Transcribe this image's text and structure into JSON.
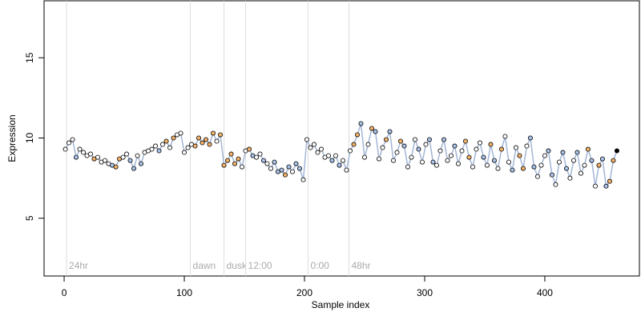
{
  "chart_data": {
    "type": "scatter",
    "xlabel": "Sample index",
    "ylabel": "Expression",
    "xlim": [
      -16.7,
      478.7
    ],
    "ylim": [
      1.4,
      18.55
    ],
    "xticks": [
      0,
      100,
      200,
      300,
      400
    ],
    "yticks": [
      5,
      10,
      15
    ],
    "line_color": "#a3b5d6",
    "palette": {
      "w": "#ffffff",
      "o": "#f5b46a",
      "b": "#a9c3ea"
    },
    "markers": [
      {
        "x": 2,
        "label": "24hr"
      },
      {
        "x": 105,
        "label": "dawn"
      },
      {
        "x": 133,
        "label": "dusk"
      },
      {
        "x": 151,
        "label": "12:00"
      },
      {
        "x": 203,
        "label": "0:00"
      },
      {
        "x": 237,
        "label": "48hr"
      }
    ],
    "marker_color": "#dddddd",
    "series": [
      {
        "x": [
          1,
          4,
          7,
          10,
          13,
          16,
          19,
          22,
          25,
          28,
          31,
          34,
          37,
          40,
          43,
          46,
          49,
          52,
          55,
          58,
          61,
          64,
          67,
          70,
          73,
          76,
          79,
          82,
          85,
          88,
          91,
          94,
          97,
          100,
          103,
          106,
          109,
          112,
          115,
          118,
          121,
          124,
          127,
          130,
          133,
          136,
          139,
          142,
          145,
          148,
          151,
          154,
          157,
          160,
          163,
          166,
          169,
          172,
          175,
          178,
          181,
          184,
          187,
          190,
          193,
          196,
          199,
          202,
          205,
          208,
          211,
          214,
          217,
          220,
          223,
          226,
          229,
          232,
          235,
          238,
          241,
          244,
          247,
          250,
          253,
          256,
          259,
          262,
          265,
          268,
          271,
          274,
          277,
          280,
          283,
          286,
          289,
          292,
          295,
          298,
          301,
          304,
          307,
          310,
          313,
          316,
          319,
          322,
          325,
          328,
          331,
          334,
          337,
          340,
          343,
          346,
          349,
          352,
          355,
          358,
          361,
          364,
          367,
          370,
          373,
          376,
          379,
          382,
          385,
          388,
          391,
          394,
          397,
          400,
          403,
          406,
          409,
          412,
          415,
          418,
          421,
          424,
          427,
          430,
          433,
          436,
          439,
          442,
          445,
          448,
          451,
          454,
          457,
          460
        ],
        "values": [
          9.3,
          9.7,
          9.9,
          8.8,
          9.3,
          9.1,
          8.9,
          9.0,
          8.7,
          8.8,
          8.5,
          8.6,
          8.4,
          8.3,
          8.2,
          8.7,
          8.8,
          9.0,
          8.6,
          8.1,
          8.9,
          8.4,
          9.1,
          9.2,
          9.3,
          9.5,
          9.2,
          9.6,
          9.8,
          9.4,
          10.0,
          10.2,
          10.3,
          9.1,
          9.4,
          9.6,
          9.5,
          10.0,
          9.7,
          9.9,
          9.6,
          10.3,
          9.8,
          10.2,
          8.3,
          8.6,
          9.0,
          8.4,
          8.7,
          8.2,
          9.2,
          9.3,
          8.9,
          8.8,
          9.0,
          8.6,
          8.4,
          8.1,
          8.5,
          7.9,
          8.0,
          7.7,
          8.2,
          7.9,
          8.4,
          8.1,
          7.4,
          9.9,
          9.4,
          9.6,
          9.1,
          9.3,
          8.8,
          8.9,
          8.6,
          8.9,
          8.3,
          8.6,
          8.0,
          9.2,
          9.6,
          10.2,
          10.9,
          8.8,
          9.6,
          10.6,
          10.4,
          8.7,
          9.4,
          9.9,
          10.4,
          8.6,
          9.1,
          9.8,
          9.5,
          8.2,
          8.8,
          9.9,
          9.3,
          8.5,
          9.6,
          9.9,
          8.5,
          8.3,
          9.2,
          9.9,
          8.6,
          8.9,
          9.5,
          8.4,
          9.2,
          9.8,
          8.8,
          8.2,
          9.3,
          9.7,
          8.8,
          8.3,
          9.6,
          8.6,
          8.1,
          9.3,
          10.1,
          8.5,
          8.0,
          9.4,
          8.9,
          8.1,
          9.5,
          10.0,
          8.2,
          7.6,
          8.3,
          8.9,
          9.2,
          7.7,
          7.1,
          8.5,
          9.1,
          8.1,
          7.5,
          8.6,
          9.1,
          7.8,
          8.3,
          9.3,
          8.6,
          7.0,
          8.3,
          8.7,
          7.0,
          7.3,
          8.6,
          9.2
        ],
        "fills": "wwwbwwwwowwwwboowwbbwbwwwwbwowowwwwwoooooowoooooowwobwwbwwbbbobwbbwwwwwwwwbwbwwwoobwwobwwobwwobwwwbwwbbwwbwwbwwoowwwbwobwowwbwoowbbwwwbbwwbbwwbwwobwobboo"
      }
    ]
  }
}
